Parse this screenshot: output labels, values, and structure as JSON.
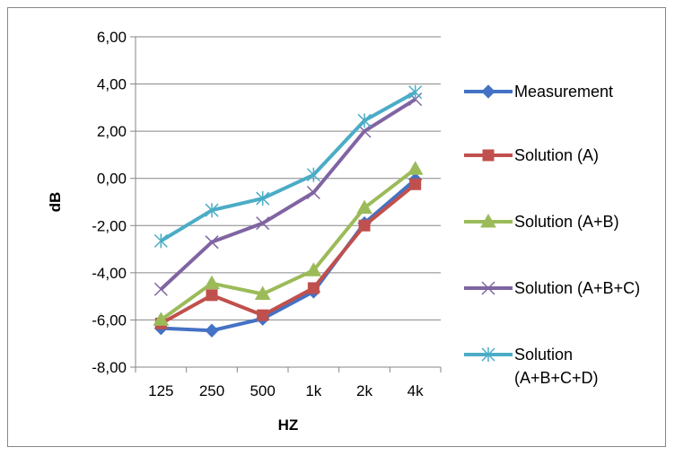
{
  "chart_data": {
    "type": "line",
    "title": "",
    "xlabel": "HZ",
    "ylabel": "dB",
    "categories": [
      "125",
      "250",
      "500",
      "1k",
      "2k",
      "4k"
    ],
    "ylim": [
      -8,
      6
    ],
    "ytick_values": [
      -8,
      -6,
      -4,
      -2,
      0,
      2,
      4,
      6
    ],
    "ytick_labels": [
      "-8,00",
      "-6,00",
      "-4,00",
      "-2,00",
      "0,00",
      "2,00",
      "4,00",
      "6,00"
    ],
    "grid": true,
    "legend_position": "right",
    "series": [
      {
        "name": "Measurement",
        "values": [
          -6.35,
          -6.45,
          -5.95,
          -4.8,
          -1.9,
          -0.05
        ],
        "color": "#4472C4",
        "marker": "diamond"
      },
      {
        "name": "Solution (A)",
        "values": [
          -6.15,
          -4.95,
          -5.8,
          -4.65,
          -2.0,
          -0.25
        ],
        "color": "#C0504D",
        "marker": "square"
      },
      {
        "name": "Solution (A+B)",
        "values": [
          -6.0,
          -4.45,
          -4.9,
          -3.9,
          -1.25,
          0.4
        ],
        "color": "#9BBB59",
        "marker": "triangle"
      },
      {
        "name": "Solution (A+B+C)",
        "values": [
          -4.7,
          -2.7,
          -1.9,
          -0.6,
          2.0,
          3.35
        ],
        "color": "#8064A2",
        "marker": "x"
      },
      {
        "name": "Solution\n(A+B+C+D)",
        "values": [
          -2.65,
          -1.35,
          -0.85,
          0.15,
          2.45,
          3.65
        ],
        "color": "#4BACC6",
        "marker": "star"
      }
    ]
  }
}
